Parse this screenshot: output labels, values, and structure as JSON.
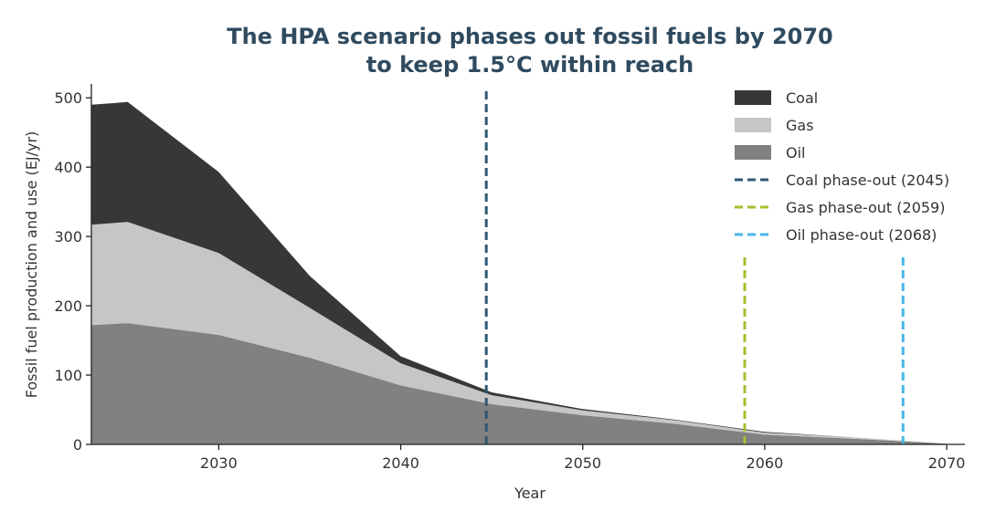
{
  "chart_data": {
    "type": "area",
    "title_line1": "The HPA scenario phases out fossil fuels by 2070",
    "title_line2": "to keep 1.5°C within reach",
    "xlabel": "Year",
    "ylabel": "Fossil fuel production and use (EJ/yr)",
    "xlim": [
      2023,
      2071
    ],
    "ylim": [
      0,
      520
    ],
    "x_ticks": [
      2030,
      2040,
      2050,
      2060,
      2070
    ],
    "y_ticks": [
      0,
      100,
      200,
      300,
      400,
      500
    ],
    "x": [
      2023,
      2025,
      2030,
      2035,
      2040,
      2045,
      2050,
      2055,
      2060,
      2065,
      2070
    ],
    "series": [
      {
        "name": "Oil",
        "color": "#818181",
        "values": [
          172,
          175,
          158,
          125,
          85,
          58,
          42,
          30,
          14,
          8,
          1
        ]
      },
      {
        "name": "Gas",
        "color": "#c6c6c6",
        "values": [
          145,
          146,
          118,
          72,
          32,
          13,
          7,
          5,
          3,
          2,
          0
        ]
      },
      {
        "name": "Coal",
        "color": "#373835",
        "values": [
          173,
          173,
          117,
          46,
          10,
          4,
          2,
          1,
          1,
          0,
          0
        ]
      }
    ],
    "vlines": [
      {
        "name": "Coal phase-out (2045)",
        "x": 2044.7,
        "top": 512,
        "color": "#2e5875"
      },
      {
        "name": "Gas phase-out (2059)",
        "x": 2058.9,
        "top": 272,
        "color": "#a4bf2e"
      },
      {
        "name": "Oil phase-out (2068)",
        "x": 2067.6,
        "top": 272,
        "color": "#47b6e8"
      }
    ],
    "legend_position": "top-right",
    "legend_order": [
      "Coal",
      "Gas",
      "Oil",
      "Coal phase-out (2045)",
      "Gas phase-out (2059)",
      "Oil phase-out (2068)"
    ]
  }
}
